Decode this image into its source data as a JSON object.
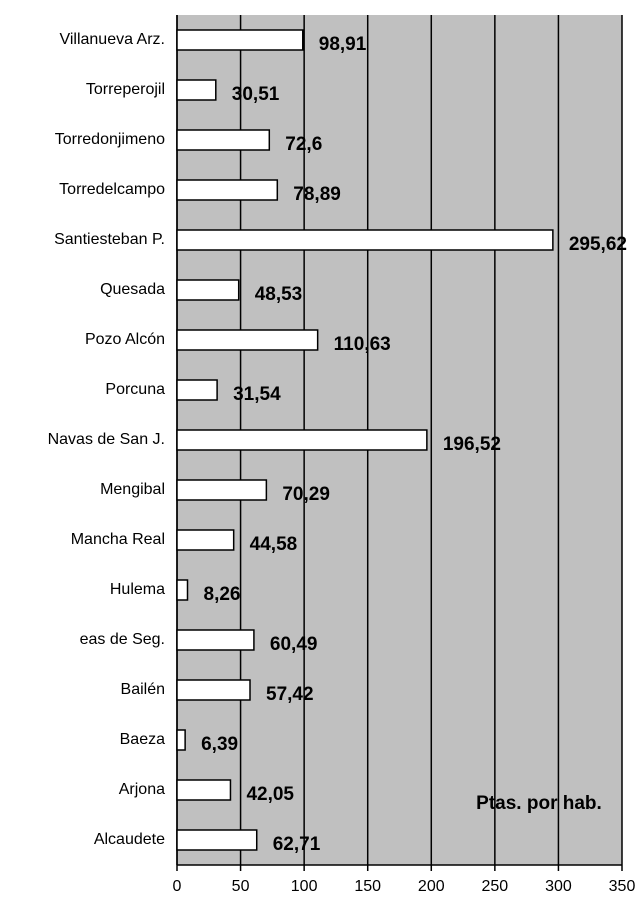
{
  "chart_data": {
    "type": "hbar",
    "categories": [
      "Villanueva Arz.",
      "Torreperojil",
      "Torredonjimeno",
      "Torredelcampo",
      "Santiesteban P.",
      "Quesada",
      "Pozo Alcón",
      "Porcuna",
      "Navas de San J.",
      "Mengibal",
      "Mancha Real",
      "Hulema",
      "eas de Seg.",
      "Bailén",
      "Baeza",
      "Arjona",
      "Alcaudete"
    ],
    "values": [
      98.91,
      30.51,
      72.6,
      78.89,
      295.62,
      48.53,
      110.63,
      31.54,
      196.52,
      70.29,
      44.58,
      8.26,
      60.49,
      57.42,
      6.39,
      42.05,
      62.71
    ],
    "value_labels": [
      "98,91",
      "30,51",
      "72,6",
      "78,89",
      "295,62",
      "48,53",
      "110,63",
      "31,54",
      "196,52",
      "70,29",
      "44,58",
      "8,26",
      "60,49",
      "57,42",
      "6,39",
      "42,05",
      "62,71"
    ],
    "color": "#ffffff",
    "plot_color": "#c0c0c0",
    "xlim": [
      0,
      350
    ],
    "xticks": [
      0,
      50,
      100,
      150,
      200,
      250,
      300,
      350
    ],
    "grid": true,
    "annotation": "Ptas. por hab."
  }
}
